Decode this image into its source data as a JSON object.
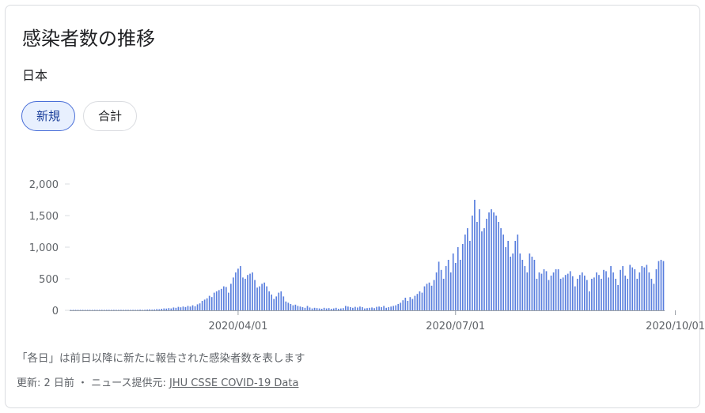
{
  "card": {
    "title": "感染者数の推移",
    "region": "日本",
    "chips": {
      "new": "新規",
      "total": "合計"
    },
    "note": "「各日」は前日以降に新たに報告された感染者数を表します",
    "source_prefix": "更新: 2 日前 ・ ニュース提供元: ",
    "source_link": "JHU CSSE COVID-19 Data"
  },
  "colors": {
    "bar": "#5a7fde",
    "grid": "#dadce0",
    "axis": "#5f6368",
    "chip_active_bg": "#e8f0fe"
  },
  "chart_data": {
    "type": "bar",
    "title": "",
    "xlabel": "",
    "ylabel": "",
    "ylim": [
      0,
      2000
    ],
    "yticks": [
      {
        "value": 0,
        "label": "0"
      },
      {
        "value": 500,
        "label": "500"
      },
      {
        "value": 1000,
        "label": "1,000"
      },
      {
        "value": 1500,
        "label": "1,500"
      },
      {
        "value": 2000,
        "label": "2,000"
      }
    ],
    "x_start_date": "2020-01-22",
    "xticks": [
      {
        "date": "2020-04-01",
        "label": "2020/04/01"
      },
      {
        "date": "2020-07-01",
        "label": "2020/07/01"
      },
      {
        "date": "2020-10-01",
        "label": "2020/10/01"
      }
    ],
    "values": [
      0,
      0,
      0,
      1,
      0,
      1,
      2,
      0,
      1,
      0,
      2,
      1,
      2,
      1,
      3,
      2,
      4,
      1,
      3,
      2,
      5,
      3,
      2,
      4,
      6,
      5,
      4,
      3,
      8,
      10,
      6,
      9,
      12,
      15,
      11,
      14,
      20,
      17,
      25,
      30,
      28,
      35,
      30,
      45,
      40,
      55,
      48,
      60,
      52,
      70,
      60,
      80,
      65,
      95,
      110,
      150,
      170,
      190,
      230,
      210,
      280,
      300,
      320,
      340,
      380,
      370,
      280,
      420,
      520,
      600,
      660,
      700,
      520,
      500,
      560,
      580,
      600,
      480,
      360,
      380,
      420,
      440,
      380,
      300,
      250,
      180,
      220,
      280,
      300,
      220,
      140,
      120,
      100,
      80,
      90,
      70,
      60,
      50,
      40,
      70,
      45,
      30,
      40,
      35,
      30,
      25,
      40,
      30,
      35,
      25,
      30,
      40,
      25,
      30,
      35,
      70,
      60,
      50,
      40,
      55,
      45,
      60,
      50,
      30,
      35,
      40,
      45,
      35,
      55,
      60,
      50,
      70,
      40,
      50,
      60,
      70,
      80,
      100,
      120,
      160,
      200,
      150,
      210,
      180,
      230,
      260,
      300,
      280,
      380,
      420,
      440,
      390,
      480,
      600,
      770,
      640,
      500,
      700,
      800,
      600,
      900,
      750,
      1000,
      800,
      1050,
      1200,
      1300,
      1100,
      1500,
      1750,
      1400,
      1600,
      1250,
      1300,
      1450,
      1550,
      1600,
      1550,
      1500,
      1400,
      1300,
      1200,
      1000,
      1100,
      850,
      900,
      1100,
      1200,
      900,
      800,
      700,
      600,
      900,
      850,
      800,
      500,
      600,
      580,
      650,
      620,
      480,
      550,
      600,
      650,
      650,
      500,
      520,
      560,
      580,
      620,
      540,
      380,
      500,
      560,
      600,
      550,
      480,
      300,
      500,
      520,
      600,
      560,
      500,
      640,
      620,
      520,
      700,
      600,
      500,
      400,
      640,
      700,
      550,
      500,
      720,
      680,
      650,
      500,
      600,
      700,
      680,
      720,
      600,
      500,
      420,
      650,
      780,
      800,
      780
    ]
  }
}
